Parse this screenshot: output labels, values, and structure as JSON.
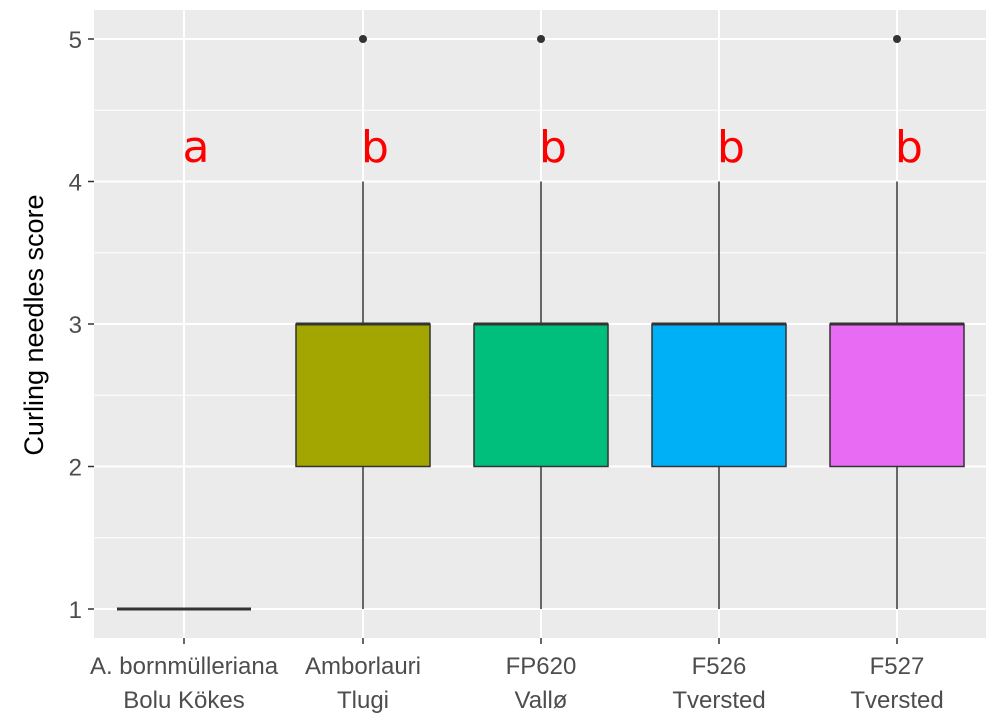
{
  "chart_data": {
    "type": "box",
    "ylabel": "Curling needles score",
    "xlabel": "",
    "ylim": [
      0.92,
      5.2
    ],
    "yticks": [
      1,
      2,
      3,
      4,
      5
    ],
    "grid": true,
    "background_color": "#ebebeb",
    "categories": [
      {
        "line1": "A. bornmülleriana",
        "line2": "Bolu Kökes"
      },
      {
        "line1": "Amborlauri",
        "line2": "Tlugi"
      },
      {
        "line1": "FP620",
        "line2": "Vallø"
      },
      {
        "line1": "F526",
        "line2": "Tversted"
      },
      {
        "line1": "F527",
        "line2": "Tversted"
      }
    ],
    "boxes": [
      {
        "min": 1,
        "q1": 1,
        "median": 1,
        "q3": 1,
        "max": 1,
        "outliers": [],
        "color": "#f8766d",
        "letter": "a"
      },
      {
        "min": 1,
        "q1": 2,
        "median": 3,
        "q3": 3,
        "max": 4,
        "outliers": [
          5
        ],
        "color": "#a3a500",
        "letter": "b"
      },
      {
        "min": 1,
        "q1": 2,
        "median": 3,
        "q3": 3,
        "max": 4,
        "outliers": [
          5
        ],
        "color": "#00bf7d",
        "letter": "b"
      },
      {
        "min": 1,
        "q1": 2,
        "median": 3,
        "q3": 3,
        "max": 4,
        "outliers": [],
        "color": "#00b0f6",
        "letter": "b"
      },
      {
        "min": 1,
        "q1": 2,
        "median": 3,
        "q3": 3,
        "max": 4,
        "outliers": [
          5
        ],
        "color": "#e76bf3",
        "letter": "b"
      }
    ],
    "letter_y": 4.25,
    "letter_color": "#ff0000"
  }
}
